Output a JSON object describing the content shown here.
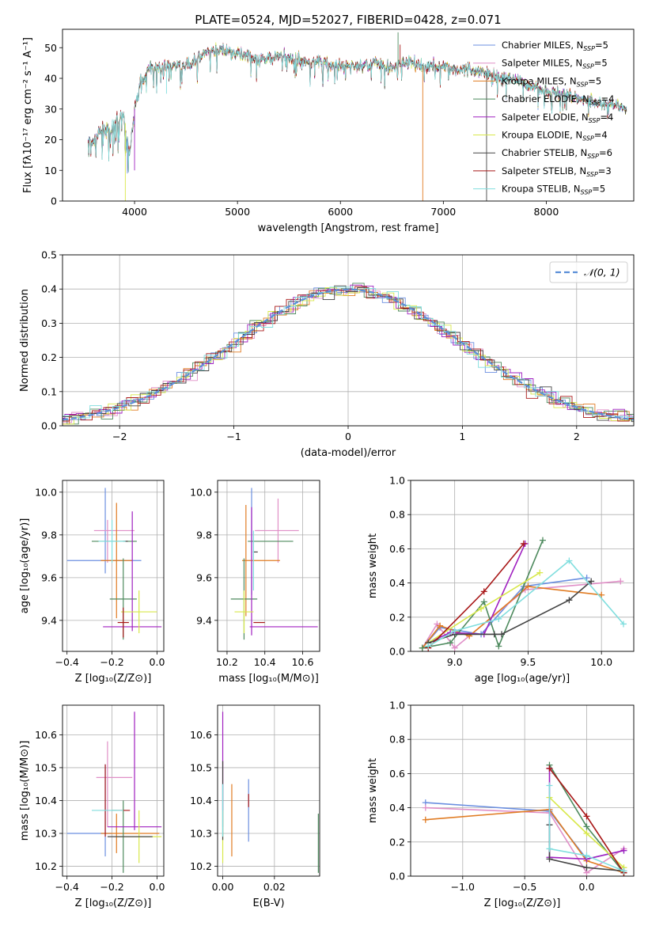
{
  "title": "PLATE=0524, MJD=52027, FIBERID=0428, z=0.071",
  "models": [
    {
      "name": "Chabrier MILES",
      "nssp": "5",
      "color": "#6b8fe0"
    },
    {
      "name": "Salpeter MILES",
      "nssp": "5",
      "color": "#e08fc7"
    },
    {
      "name": "Kroupa MILES",
      "nssp": "5",
      "color": "#e07b22"
    },
    {
      "name": "Chabrier ELODIE",
      "nssp": "4",
      "color": "#4e8a5e"
    },
    {
      "name": "Salpeter ELODIE",
      "nssp": "4",
      "color": "#a020c0"
    },
    {
      "name": "Kroupa ELODIE",
      "nssp": "4",
      "color": "#d8e84a"
    },
    {
      "name": "Chabrier STELIB",
      "nssp": "6",
      "color": "#444444"
    },
    {
      "name": "Salpeter STELIB",
      "nssp": "3",
      "color": "#a81818"
    },
    {
      "name": "Kroupa STELIB",
      "nssp": "5",
      "color": "#80dede"
    }
  ],
  "chart_data": [
    {
      "type": "line",
      "id": "spectrum",
      "xlabel": "wavelength [Angstrom, rest frame]",
      "ylabel": "Flux [fλ10⁻¹⁷ erg cm⁻² s⁻¹ A⁻¹]",
      "xlim": [
        3300,
        8850
      ],
      "ylim": [
        0,
        56
      ],
      "xticks": [
        4000,
        5000,
        6000,
        7000,
        8000
      ],
      "yticks": [
        0,
        10,
        20,
        30,
        40,
        50
      ],
      "grid": false,
      "legend": "top-right",
      "envelope": [
        [
          3550,
          20
        ],
        [
          3600,
          19
        ],
        [
          3650,
          22
        ],
        [
          3700,
          24
        ],
        [
          3750,
          22
        ],
        [
          3800,
          25
        ],
        [
          3850,
          27
        ],
        [
          3900,
          28
        ],
        [
          3950,
          15
        ],
        [
          4000,
          30
        ],
        [
          4050,
          38
        ],
        [
          4100,
          41
        ],
        [
          4150,
          44
        ],
        [
          4200,
          43
        ],
        [
          4300,
          44
        ],
        [
          4400,
          44
        ],
        [
          4500,
          44
        ],
        [
          4600,
          46
        ],
        [
          4700,
          48
        ],
        [
          4800,
          49
        ],
        [
          4900,
          49
        ],
        [
          5000,
          48
        ],
        [
          5100,
          48
        ],
        [
          5200,
          45
        ],
        [
          5300,
          47
        ],
        [
          5400,
          47
        ],
        [
          5500,
          47
        ],
        [
          5600,
          46
        ],
        [
          5700,
          45
        ],
        [
          5800,
          46
        ],
        [
          5900,
          44
        ],
        [
          6000,
          44
        ],
        [
          6100,
          44
        ],
        [
          6200,
          44
        ],
        [
          6300,
          45
        ],
        [
          6400,
          45
        ],
        [
          6500,
          43
        ],
        [
          6600,
          45
        ],
        [
          6700,
          45
        ],
        [
          6800,
          44
        ],
        [
          6900,
          44
        ],
        [
          7000,
          44
        ],
        [
          7100,
          43
        ],
        [
          7200,
          43
        ],
        [
          7300,
          42
        ],
        [
          7400,
          42
        ],
        [
          7500,
          41
        ],
        [
          7600,
          40
        ],
        [
          7700,
          40
        ],
        [
          7800,
          38
        ],
        [
          7900,
          37
        ],
        [
          8000,
          36
        ],
        [
          8100,
          35
        ],
        [
          8200,
          35
        ],
        [
          8300,
          34
        ],
        [
          8400,
          33
        ],
        [
          8500,
          32
        ],
        [
          8600,
          32
        ],
        [
          8700,
          31
        ],
        [
          8780,
          30
        ]
      ],
      "spikes": [
        [
          3910,
          0
        ],
        [
          3930,
          9
        ],
        [
          4000,
          10
        ],
        [
          4310,
          35
        ],
        [
          6560,
          55
        ],
        [
          6580,
          51
        ],
        [
          6800,
          0
        ],
        [
          7420,
          0
        ]
      ]
    },
    {
      "type": "step",
      "id": "residuals",
      "xlabel": "(data-model)/error",
      "ylabel": "Normed distribution",
      "xlim": [
        -2.5,
        2.5
      ],
      "ylim": [
        0,
        0.5
      ],
      "xticks": [
        -2,
        -1,
        0,
        1,
        2
      ],
      "yticks": [
        0.0,
        0.1,
        0.2,
        0.3,
        0.4,
        0.5
      ],
      "grid": true,
      "legend": "top-right",
      "legend_label": "𝒩(0, 1)",
      "reference_color": "#5b8fd8",
      "bin_width": 0.1
    },
    {
      "type": "errorbar",
      "id": "age-vs-Z",
      "xlabel": "Z [log₁₀(Z/Z⊙)]",
      "ylabel": "age  [log₁₀(age/yr)]",
      "xlim": [
        -0.42,
        0.03
      ],
      "ylim": [
        9.255,
        10.055
      ],
      "xticks": [
        -0.4,
        -0.2,
        0.0
      ],
      "yticks": [
        9.4,
        9.6,
        9.8,
        10.0
      ],
      "grid": true,
      "points": [
        {
          "x": -0.235,
          "xerr": 0.165,
          "y": 9.68,
          "yerr": 0.0,
          "c": 0
        },
        {
          "x": -0.23,
          "xerr": 0.0,
          "y": 9.82,
          "yerr": 0.2,
          "c": 0
        },
        {
          "x": -0.19,
          "xerr": 0.09,
          "y": 9.82,
          "yerr": 0.0,
          "c": 1
        },
        {
          "x": -0.22,
          "xerr": 0.0,
          "y": 9.77,
          "yerr": 0.1,
          "c": 1
        },
        {
          "x": -0.18,
          "xerr": 0.07,
          "y": 9.68,
          "yerr": 0.27,
          "c": 2
        },
        {
          "x": -0.19,
          "xerr": 0.1,
          "y": 9.77,
          "yerr": 0.0,
          "c": 3
        },
        {
          "x": -0.15,
          "xerr": 0.06,
          "y": 9.5,
          "yerr": 0.19,
          "c": 3
        },
        {
          "x": -0.11,
          "xerr": 0.13,
          "y": 9.37,
          "yerr": 0.0,
          "c": 4
        },
        {
          "x": -0.11,
          "xerr": 0.0,
          "y": 9.63,
          "yerr": 0.28,
          "c": 4
        },
        {
          "x": -0.08,
          "xerr": 0.08,
          "y": 9.44,
          "yerr": 0.1,
          "c": 5
        },
        {
          "x": -0.14,
          "xerr": 0.0,
          "y": 9.77,
          "yerr": 0.0,
          "c": 6
        },
        {
          "x": -0.15,
          "xerr": 0.025,
          "y": 9.39,
          "yerr": 0.07,
          "c": 7
        },
        {
          "x": -0.2,
          "xerr": 0.06,
          "y": 9.77,
          "yerr": 0.1,
          "c": 8
        }
      ]
    },
    {
      "type": "errorbar",
      "id": "age-vs-mass",
      "xlabel": "mass [log₁₀(M/M⊙)]",
      "ylabel": "",
      "xlim": [
        10.15,
        10.69
      ],
      "ylim": [
        9.255,
        10.055
      ],
      "xticks": [
        10.2,
        10.4,
        10.6
      ],
      "yticks": [
        9.4,
        9.6,
        9.8,
        10.0
      ],
      "grid": true,
      "points": [
        {
          "x": 10.33,
          "xerr": 0.0,
          "y": 9.77,
          "yerr": 0.25,
          "c": 0
        },
        {
          "x": 10.47,
          "xerr": 0.11,
          "y": 9.82,
          "yerr": 0.15,
          "c": 1
        },
        {
          "x": 10.36,
          "xerr": 0.0,
          "y": 9.82,
          "yerr": 0.0,
          "c": 1
        },
        {
          "x": 10.3,
          "xerr": 0.0,
          "y": 9.68,
          "yerr": 0.26,
          "c": 2
        },
        {
          "x": 10.38,
          "xerr": 0.1,
          "y": 9.68,
          "yerr": 0.0,
          "c": 2
        },
        {
          "x": 10.43,
          "xerr": 0.12,
          "y": 9.77,
          "yerr": 0.0,
          "c": 3
        },
        {
          "x": 10.29,
          "xerr": 0.07,
          "y": 9.5,
          "yerr": 0.19,
          "c": 3
        },
        {
          "x": 10.5,
          "xerr": 0.18,
          "y": 9.37,
          "yerr": 0.0,
          "c": 4
        },
        {
          "x": 10.33,
          "xerr": 0.0,
          "y": 9.63,
          "yerr": 0.3,
          "c": 4
        },
        {
          "x": 10.29,
          "xerr": 0.05,
          "y": 9.44,
          "yerr": 0.1,
          "c": 5
        },
        {
          "x": 10.35,
          "xerr": 0.0,
          "y": 9.72,
          "yerr": 0.0,
          "c": 6
        },
        {
          "x": 10.37,
          "xerr": 0.03,
          "y": 9.39,
          "yerr": 0.0,
          "c": 7
        },
        {
          "x": 10.34,
          "xerr": 0.0,
          "y": 9.68,
          "yerr": 0.14,
          "c": 8
        }
      ]
    },
    {
      "type": "line",
      "id": "weight-vs-age",
      "xlabel": "age  [log₁₀(age/yr)]",
      "ylabel": "mass weight",
      "xlim": [
        8.7,
        10.22
      ],
      "ylim": [
        0,
        1
      ],
      "xticks": [
        9.0,
        9.5,
        10.0
      ],
      "yticks": [
        0.0,
        0.2,
        0.4,
        0.6,
        0.8,
        1.0
      ],
      "grid": true,
      "series": [
        {
          "c": 0,
          "x": [
            8.78,
            8.9,
            9.18,
            9.47,
            9.9
          ],
          "y": [
            0.02,
            0.14,
            0.1,
            0.38,
            0.43
          ]
        },
        {
          "c": 1,
          "x": [
            8.78,
            8.88,
            9.0,
            9.48,
            10.13
          ],
          "y": [
            0.02,
            0.16,
            0.02,
            0.36,
            0.41
          ]
        },
        {
          "c": 2,
          "x": [
            8.78,
            8.9,
            9.1,
            9.5,
            10.0
          ],
          "y": [
            0.02,
            0.15,
            0.09,
            0.38,
            0.33
          ]
        },
        {
          "c": 3,
          "x": [
            8.78,
            8.97,
            9.2,
            9.3,
            9.6
          ],
          "y": [
            0.02,
            0.05,
            0.29,
            0.03,
            0.65
          ]
        },
        {
          "c": 4,
          "x": [
            8.82,
            8.97,
            9.2,
            9.48
          ],
          "y": [
            0.05,
            0.11,
            0.1,
            0.63
          ]
        },
        {
          "c": 5,
          "x": [
            8.82,
            9.18,
            9.58
          ],
          "y": [
            0.05,
            0.25,
            0.46
          ]
        },
        {
          "c": 6,
          "x": [
            8.82,
            9.0,
            9.27,
            9.32,
            9.78,
            9.93
          ],
          "y": [
            0.05,
            0.1,
            0.1,
            0.1,
            0.3,
            0.41
          ]
        },
        {
          "c": 7,
          "x": [
            8.82,
            9.2,
            9.47
          ],
          "y": [
            0.02,
            0.35,
            0.63
          ]
        },
        {
          "c": 8,
          "x": [
            8.82,
            9.0,
            9.3,
            9.78,
            10.15
          ],
          "y": [
            0.03,
            0.12,
            0.19,
            0.53,
            0.16
          ]
        }
      ]
    },
    {
      "type": "errorbar",
      "id": "mass-vs-Z",
      "xlabel": "Z [log₁₀(Z/Z⊙)]",
      "ylabel": "mass [log₁₀(M/M⊙)]",
      "xlim": [
        -0.42,
        0.03
      ],
      "ylim": [
        10.17,
        10.69
      ],
      "xticks": [
        -0.4,
        -0.2,
        0.0
      ],
      "yticks": [
        10.2,
        10.3,
        10.4,
        10.5,
        10.6
      ],
      "grid": true,
      "points": [
        {
          "x": -0.3,
          "xerr": 0.1,
          "y": 10.3,
          "yerr": 0.0,
          "c": 0
        },
        {
          "x": -0.23,
          "xerr": 0.0,
          "y": 10.37,
          "yerr": 0.14,
          "c": 0
        },
        {
          "x": -0.19,
          "xerr": 0.08,
          "y": 10.47,
          "yerr": 0.0,
          "c": 1
        },
        {
          "x": -0.22,
          "xerr": 0.0,
          "y": 10.45,
          "yerr": 0.13,
          "c": 1
        },
        {
          "x": -0.18,
          "xerr": 0.0,
          "y": 10.3,
          "yerr": 0.06,
          "c": 2
        },
        {
          "x": -0.12,
          "xerr": 0.13,
          "y": 10.3,
          "yerr": 0.0,
          "c": 2
        },
        {
          "x": -0.19,
          "xerr": 0.0,
          "y": 10.37,
          "yerr": 0.0,
          "c": 3
        },
        {
          "x": -0.15,
          "xerr": 0.0,
          "y": 10.29,
          "yerr": 0.11,
          "c": 3
        },
        {
          "x": -0.1,
          "xerr": 0.12,
          "y": 10.32,
          "yerr": 0.0,
          "c": 4
        },
        {
          "x": -0.1,
          "xerr": 0.0,
          "y": 10.49,
          "yerr": 0.18,
          "c": 4
        },
        {
          "x": -0.08,
          "xerr": 0.1,
          "y": 10.29,
          "yerr": 0.08,
          "c": 5
        },
        {
          "x": -0.12,
          "xerr": 0.1,
          "y": 10.29,
          "yerr": 0.0,
          "c": 6
        },
        {
          "x": -0.15,
          "xerr": 0.03,
          "y": 10.37,
          "yerr": 0.0,
          "c": 7
        },
        {
          "x": -0.23,
          "xerr": 0.0,
          "y": 10.4,
          "yerr": 0.11,
          "c": 7
        },
        {
          "x": -0.22,
          "xerr": 0.07,
          "y": 10.37,
          "yerr": 0.0,
          "c": 8
        }
      ]
    },
    {
      "type": "errorbar",
      "id": "mass-vs-ebv",
      "xlabel": "E(B-V)",
      "ylabel": "",
      "xlim": [
        -0.002,
        0.0375
      ],
      "ylim": [
        10.17,
        10.69
      ],
      "xticks": [
        0.0,
        0.02
      ],
      "yticks": [
        10.2,
        10.3,
        10.4,
        10.5,
        10.6
      ],
      "grid": true,
      "points": [
        {
          "x": 0.01,
          "xerr": 0.0,
          "y": 10.37,
          "yerr": 0.095,
          "c": 0
        },
        {
          "x": 0.0,
          "xerr": 0.0,
          "y": 10.42,
          "yerr": 0.1,
          "c": 1
        },
        {
          "x": 0.0035,
          "xerr": 0.0,
          "y": 10.34,
          "yerr": 0.11,
          "c": 2
        },
        {
          "x": 0.037,
          "xerr": 0.0,
          "y": 10.27,
          "yerr": 0.09,
          "c": 3
        },
        {
          "x": 0.0,
          "xerr": 0.0,
          "y": 10.52,
          "yerr": 0.15,
          "c": 4
        },
        {
          "x": 0.0,
          "xerr": 0.0,
          "y": 10.29,
          "yerr": 0.08,
          "c": 5
        },
        {
          "x": 0.0,
          "xerr": 0.0,
          "y": 10.4,
          "yerr": 0.12,
          "c": 6
        },
        {
          "x": 0.01,
          "xerr": 0.0,
          "y": 10.4,
          "yerr": 0.02,
          "c": 7
        },
        {
          "x": 0.0,
          "xerr": 0.0,
          "y": 10.37,
          "yerr": 0.08,
          "c": 8
        }
      ]
    },
    {
      "type": "line",
      "id": "weight-vs-Z",
      "xlabel": "Z [log₁₀(Z/Z⊙)]",
      "ylabel": "mass weight",
      "xlim": [
        -1.42,
        0.38
      ],
      "ylim": [
        0,
        1
      ],
      "xticks": [
        -1.0,
        -0.5,
        0.0
      ],
      "yticks": [
        0.0,
        0.2,
        0.4,
        0.6,
        0.8,
        1.0
      ],
      "grid": true,
      "series": [
        {
          "c": 0,
          "x": [
            -1.3,
            -0.3,
            0.0,
            0.3
          ],
          "y": [
            0.43,
            0.38,
            0.1,
            0.15
          ]
        },
        {
          "c": 1,
          "x": [
            -1.3,
            -0.3,
            0.0,
            0.3
          ],
          "y": [
            0.4,
            0.37,
            0.02,
            0.16
          ]
        },
        {
          "c": 2,
          "x": [
            -1.3,
            -0.3,
            0.0,
            0.3
          ],
          "y": [
            0.33,
            0.39,
            0.09,
            0.02
          ]
        },
        {
          "c": 3,
          "x": [
            -0.3,
            0.0,
            0.3
          ],
          "y": [
            0.65,
            0.29,
            0.02
          ]
        },
        {
          "c": 4,
          "x": [
            -0.3,
            -0.3,
            0.0,
            0.3
          ],
          "y": [
            0.63,
            0.11,
            0.1,
            0.15
          ]
        },
        {
          "c": 5,
          "x": [
            -0.3,
            0.0,
            0.3
          ],
          "y": [
            0.46,
            0.25,
            0.05
          ]
        },
        {
          "c": 6,
          "x": [
            -0.3,
            -0.3,
            0.0,
            0.3
          ],
          "y": [
            0.3,
            0.1,
            0.05,
            0.03
          ]
        },
        {
          "c": 7,
          "x": [
            -0.3,
            0.0,
            0.3
          ],
          "y": [
            0.63,
            0.35,
            0.02
          ]
        },
        {
          "c": 8,
          "x": [
            -0.3,
            -0.3,
            0.0,
            0.3
          ],
          "y": [
            0.53,
            0.16,
            0.12,
            0.03
          ]
        }
      ]
    }
  ]
}
